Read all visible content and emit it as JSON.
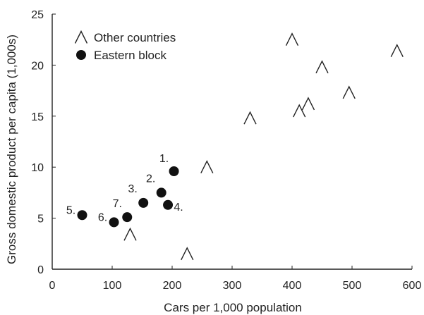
{
  "chart_data": {
    "type": "scatter",
    "title": "",
    "xlabel": "Cars per 1,000 population",
    "ylabel": "Gross domestic product per capita (1,000s)",
    "xlim": [
      0,
      600
    ],
    "ylim": [
      0,
      25
    ],
    "x_ticks": [
      0,
      100,
      200,
      300,
      400,
      500,
      600
    ],
    "y_ticks": [
      0,
      5,
      10,
      15,
      20,
      25
    ],
    "grid": false,
    "legend_position": "top-left",
    "series": [
      {
        "name": "Other countries",
        "marker": "open-triangle",
        "points": [
          {
            "x": 130,
            "y": 3.4
          },
          {
            "x": 225,
            "y": 1.5
          },
          {
            "x": 258,
            "y": 10.0
          },
          {
            "x": 330,
            "y": 14.8
          },
          {
            "x": 400,
            "y": 22.5
          },
          {
            "x": 412,
            "y": 15.5
          },
          {
            "x": 427,
            "y": 16.2
          },
          {
            "x": 450,
            "y": 19.8
          },
          {
            "x": 495,
            "y": 17.3
          },
          {
            "x": 575,
            "y": 21.4
          }
        ]
      },
      {
        "name": "Eastern block",
        "marker": "filled-circle",
        "points": [
          {
            "label": "1.",
            "x": 203,
            "y": 9.6
          },
          {
            "label": "2.",
            "x": 182,
            "y": 7.5
          },
          {
            "label": "3.",
            "x": 152,
            "y": 6.5
          },
          {
            "label": "4.",
            "x": 193,
            "y": 6.3
          },
          {
            "label": "5.",
            "x": 50,
            "y": 5.3
          },
          {
            "label": "6.",
            "x": 103,
            "y": 4.6
          },
          {
            "label": "7.",
            "x": 125,
            "y": 5.1
          }
        ]
      }
    ]
  }
}
